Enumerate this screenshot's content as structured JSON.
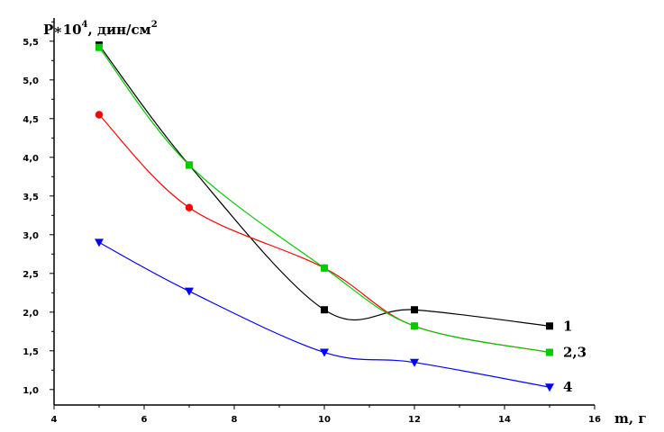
{
  "chart_data": {
    "type": "line",
    "title": "",
    "ylabel": "P∗10",
    "ylabel_exp": "4",
    "ylabel_unit": ", дин/см",
    "ylabel_unit_exp": "2",
    "xlabel": "m, г",
    "xlim": [
      4,
      16
    ],
    "ylim": [
      0.8,
      5.8
    ],
    "xticks": [
      "4",
      "6",
      "8",
      "10",
      "12",
      "14",
      "16"
    ],
    "yticks": [
      "1,0",
      "1,5",
      "2,0",
      "2,5",
      "3,0",
      "3,5",
      "4,0",
      "4,5",
      "5,0",
      "5,5"
    ],
    "x": [
      5,
      7,
      10,
      12,
      15
    ],
    "series": [
      {
        "name": "1",
        "color": "#000000",
        "marker": "square",
        "values": [
          5.45,
          3.9,
          2.03,
          2.03,
          1.82
        ]
      },
      {
        "name": "2,3",
        "color": "#ff0000",
        "marker": "circle",
        "values": [
          4.55,
          3.35,
          2.57,
          1.82,
          1.48
        ]
      },
      {
        "name": "2,3",
        "color": "#00cc00",
        "marker": "square",
        "values": [
          5.42,
          3.9,
          2.57,
          1.82,
          1.48
        ]
      },
      {
        "name": "4",
        "color": "#0000ff",
        "marker": "triangle-down",
        "values": [
          2.9,
          2.27,
          1.48,
          1.35,
          1.03
        ]
      }
    ],
    "end_labels": [
      "1",
      "2,3",
      "4"
    ],
    "grid": false,
    "legend": "none"
  }
}
